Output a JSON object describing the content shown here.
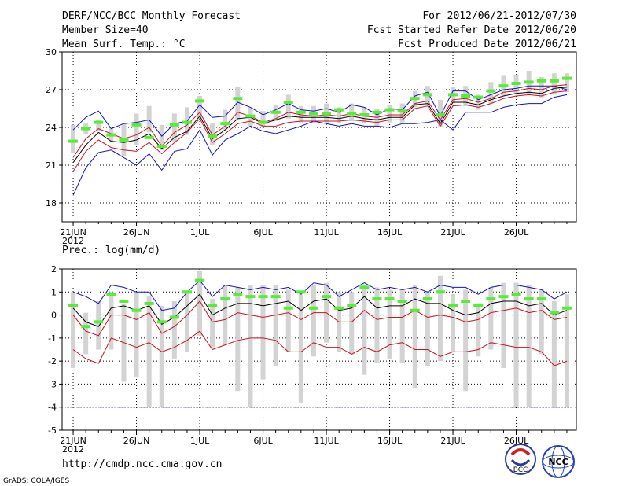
{
  "header": {
    "line1_left": "DERF/NCC/BCC Monthly Forecast",
    "line2_left": "Member Size=40",
    "line3_left": "Mean Surf. Temp.: °C",
    "line1_right": "For 2012/06/21-2012/07/30",
    "line2_right": "Fcst Started Refer Date 2012/06/20",
    "line3_right": "Fcst Produced Date 2012/06/21"
  },
  "footer": {
    "url": "http://cmdp.ncc.cma.gov.cn",
    "credit": "GrADS: COLA/IGES",
    "logo1_text": "BCC",
    "logo2_text": "NCC"
  },
  "colors": {
    "frame": "#000000",
    "grid": "#000000",
    "box": "#d3d3d3",
    "median": "#55ee33",
    "outer": "#1010cc",
    "inner": "#cc1020",
    "mean": "#000000",
    "ref": "#1010cc"
  },
  "chart_data": [
    {
      "type": "line",
      "title": "Mean Surf. Temp.: °C",
      "x_tick_labels": [
        "21JUN",
        "26JUN",
        "1JUL",
        "6JUL",
        "11JUL",
        "16JUL",
        "21JUL",
        "26JUL"
      ],
      "x_year_label": "2012",
      "ylim": [
        16.5,
        30
      ],
      "y_ticks": [
        18,
        21,
        24,
        27,
        30
      ],
      "days": 40,
      "series": [
        {
          "name": "max",
          "style": "blue",
          "values": [
            18.6,
            20.8,
            22.0,
            22.2,
            21.6,
            21.0,
            21.9,
            20.6,
            22.1,
            22.3,
            23.8,
            21.8,
            23.0,
            23.5,
            24.1,
            23.7,
            23.5,
            23.8,
            24.1,
            24.5,
            24.3,
            24.1,
            24.3,
            24.1,
            24.1,
            24.0,
            24.3,
            24.3,
            24.4,
            24.6,
            23.8,
            25.2,
            25.2,
            25.2,
            25.6,
            25.8,
            25.9,
            25.9,
            26.4,
            26.6
          ]
        },
        {
          "name": "min",
          "style": "blue",
          "values": [
            23.8,
            24.8,
            25.3,
            23.9,
            24.3,
            24.4,
            24.6,
            23.3,
            24.3,
            24.5,
            25.8,
            24.8,
            24.9,
            26.0,
            25.6,
            25.0,
            25.4,
            25.9,
            25.4,
            25.3,
            25.5,
            25.2,
            25.8,
            25.6,
            25.0,
            25.5,
            25.4,
            26.5,
            26.8,
            24.9,
            26.9,
            26.9,
            26.2,
            26.6,
            27.0,
            27.1,
            27.3,
            27.3,
            27.3,
            27.0
          ]
        },
        {
          "name": "p25",
          "style": "red",
          "values": [
            20.5,
            22.1,
            23.0,
            22.4,
            22.2,
            22.1,
            22.8,
            21.9,
            22.8,
            23.6,
            24.7,
            22.8,
            23.5,
            24.3,
            24.5,
            24.1,
            24.1,
            24.4,
            24.5,
            24.5,
            24.5,
            24.5,
            24.6,
            24.5,
            24.4,
            24.6,
            24.6,
            25.5,
            25.7,
            24.1,
            25.7,
            25.8,
            25.6,
            25.9,
            26.3,
            26.5,
            26.6,
            26.5,
            26.8,
            26.9
          ]
        },
        {
          "name": "p75",
          "style": "red",
          "values": [
            21.6,
            23.1,
            23.9,
            23.5,
            23.1,
            23.4,
            24.0,
            22.5,
            23.6,
            24.2,
            25.2,
            23.4,
            24.1,
            25.2,
            24.9,
            24.4,
            24.7,
            25.2,
            25.0,
            24.9,
            25.0,
            24.9,
            25.1,
            24.9,
            24.8,
            25.0,
            25.0,
            25.9,
            26.1,
            24.6,
            26.2,
            26.3,
            26.0,
            26.3,
            26.8,
            26.9,
            27.1,
            27.0,
            27.3,
            27.4
          ]
        },
        {
          "name": "mean",
          "style": "black",
          "values": [
            21.2,
            22.6,
            23.6,
            22.9,
            22.8,
            23.0,
            23.5,
            22.3,
            23.2,
            23.7,
            24.9,
            23.1,
            23.8,
            24.7,
            24.8,
            24.3,
            24.6,
            24.9,
            24.8,
            24.8,
            24.8,
            24.7,
            24.9,
            24.7,
            24.6,
            24.8,
            24.8,
            25.8,
            25.9,
            24.3,
            26.0,
            26.0,
            25.8,
            26.2,
            26.5,
            26.7,
            26.8,
            26.7,
            27.1,
            27.2
          ]
        },
        {
          "name": "median",
          "style": "green-dash",
          "values": [
            22.9,
            23.9,
            24.4,
            23.4,
            23.0,
            24.2,
            23.2,
            22.5,
            24.2,
            24.4,
            26.1,
            23.3,
            24.3,
            26.3,
            24.9,
            24.4,
            25.2,
            26.0,
            25.2,
            25.1,
            25.1,
            25.4,
            25.1,
            25.0,
            25.2,
            25.4,
            25.3,
            26.3,
            26.6,
            25.0,
            26.6,
            26.5,
            26.4,
            26.9,
            27.3,
            27.5,
            27.6,
            27.7,
            27.7,
            27.9
          ]
        },
        {
          "name": "box_top",
          "style": "grey-bar",
          "values": [
            24.2,
            24.3,
            24.6,
            23.9,
            24.3,
            25.1,
            25.7,
            24.2,
            25.1,
            25.6,
            26.5,
            24.3,
            25.4,
            27.2,
            25.6,
            25.3,
            25.8,
            26.6,
            25.7,
            25.7,
            25.9,
            25.6,
            25.9,
            25.6,
            25.5,
            25.8,
            25.9,
            26.9,
            27.3,
            26.2,
            27.2,
            27.3,
            26.6,
            27.6,
            28.1,
            28.2,
            28.5,
            28.0,
            28.3,
            28.3
          ]
        },
        {
          "name": "box_bottom",
          "style": "grey-bar",
          "values": [
            22.0,
            23.5,
            23.7,
            22.8,
            21.7,
            22.6,
            23.6,
            22.2,
            22.9,
            23.4,
            24.7,
            22.6,
            23.8,
            24.6,
            24.1,
            24.0,
            24.5,
            24.7,
            24.4,
            24.3,
            24.4,
            24.3,
            24.5,
            24.3,
            24.1,
            24.4,
            24.4,
            25.6,
            25.8,
            24.0,
            25.9,
            25.7,
            25.4,
            25.9,
            26.5,
            26.6,
            26.7,
            26.4,
            26.6,
            26.8
          ]
        }
      ]
    },
    {
      "type": "line",
      "title": "Prec.: log(mm/d)",
      "x_tick_labels": [
        "21JUN",
        "26JUN",
        "1JUL",
        "6JUL",
        "11JUL",
        "16JUL",
        "21JUL",
        "26JUL"
      ],
      "x_year_label": "2012",
      "ylim": [
        -5,
        2
      ],
      "y_ticks": [
        -5,
        -4,
        -3,
        -2,
        -1,
        0,
        1,
        2
      ],
      "days": 40,
      "reference_line": -4,
      "series": [
        {
          "name": "max",
          "style": "blue",
          "values": [
            1.0,
            0.8,
            0.5,
            1.3,
            1.2,
            1.0,
            1.0,
            0.2,
            0.3,
            1.0,
            1.5,
            0.8,
            1.3,
            1.2,
            1.1,
            1.2,
            1.1,
            1.2,
            0.9,
            1.4,
            1.3,
            0.8,
            1.1,
            1.4,
            1.1,
            1.2,
            1.1,
            1.2,
            1.0,
            1.3,
            1.2,
            1.2,
            0.9,
            1.2,
            1.3,
            1.3,
            1.2,
            1.1,
            0.7,
            1.0
          ]
        },
        {
          "name": "mean",
          "style": "black",
          "values": [
            0.3,
            -0.3,
            -0.5,
            0.3,
            0.4,
            0.2,
            0.4,
            -0.4,
            -0.1,
            0.4,
            0.9,
            0.0,
            0.3,
            0.5,
            0.5,
            0.4,
            0.5,
            0.6,
            0.2,
            0.6,
            0.7,
            0.2,
            0.3,
            0.8,
            0.3,
            0.4,
            0.4,
            0.7,
            0.5,
            0.5,
            0.2,
            0.0,
            0.1,
            0.5,
            0.6,
            0.6,
            0.4,
            0.5,
            0.0,
            0.2
          ]
        },
        {
          "name": "p25",
          "style": "red",
          "values": [
            0.0,
            -0.7,
            -0.9,
            0.0,
            0.0,
            -0.2,
            0.1,
            -0.8,
            -0.5,
            0.0,
            0.6,
            -0.3,
            -0.2,
            0.1,
            0.0,
            -0.1,
            0.0,
            0.1,
            -0.2,
            0.1,
            0.1,
            -0.3,
            -0.3,
            0.2,
            -0.2,
            -0.1,
            -0.1,
            0.2,
            -0.1,
            0.0,
            -0.1,
            -0.3,
            -0.2,
            0.1,
            0.2,
            0.3,
            0.1,
            0.2,
            -0.2,
            -0.1
          ]
        },
        {
          "name": "min",
          "style": "red",
          "values": [
            -1.5,
            -1.9,
            -2.1,
            -1.0,
            -1.2,
            -1.4,
            -1.2,
            -1.6,
            -1.4,
            -1.1,
            -0.7,
            -1.5,
            -1.3,
            -1.1,
            -1.0,
            -1.0,
            -1.1,
            -1.6,
            -1.6,
            -1.2,
            -1.4,
            -1.4,
            -1.7,
            -1.4,
            -1.6,
            -1.3,
            -1.2,
            -1.5,
            -1.5,
            -1.8,
            -1.6,
            -1.6,
            -1.5,
            -1.2,
            -1.3,
            -1.4,
            -1.4,
            -1.6,
            -2.2,
            -2.0
          ]
        },
        {
          "name": "median",
          "style": "green-dash",
          "values": [
            0.4,
            -0.5,
            -0.3,
            0.9,
            0.6,
            0.2,
            0.5,
            -0.3,
            -0.1,
            1.0,
            1.5,
            0.4,
            0.7,
            0.9,
            0.8,
            0.8,
            0.8,
            0.3,
            1.0,
            0.3,
            0.8,
            0.3,
            0.4,
            1.2,
            0.7,
            0.7,
            0.6,
            0.2,
            0.7,
            1.0,
            0.4,
            0.6,
            0.4,
            0.7,
            0.8,
            0.9,
            0.7,
            0.7,
            0.1,
            0.3
          ]
        },
        {
          "name": "box_top",
          "style": "grey-bar",
          "values": [
            1.0,
            0.1,
            0.6,
            1.0,
            0.5,
            1.0,
            0.8,
            0.4,
            0.6,
            1.0,
            1.9,
            0.7,
            1.3,
            1.2,
            1.3,
            1.3,
            1.3,
            1.1,
            0.9,
            1.3,
            1.4,
            1.0,
            1.0,
            1.3,
            1.2,
            1.1,
            1.1,
            1.3,
            1.0,
            1.7,
            0.9,
            1.1,
            0.5,
            1.2,
            1.4,
            1.4,
            1.3,
            1.1,
            0.6,
            0.9
          ]
        },
        {
          "name": "box_bottom",
          "style": "grey-bar",
          "values": [
            -2.3,
            -1.7,
            -1.5,
            -1.5,
            -2.9,
            -2.7,
            -4.0,
            -4.0,
            -1.9,
            -1.6,
            -0.9,
            -1.4,
            -1.3,
            -3.3,
            -4.0,
            -2.8,
            -2.2,
            -1.6,
            -3.8,
            -1.8,
            -1.2,
            -1.6,
            -1.7,
            -2.6,
            -2.1,
            -1.9,
            -2.1,
            -3.2,
            -2.2,
            -2.0,
            -1.6,
            -3.3,
            -1.8,
            -1.5,
            -2.3,
            -4.0,
            -4.0,
            -1.7,
            -4.0,
            -4.0
          ]
        }
      ]
    }
  ]
}
